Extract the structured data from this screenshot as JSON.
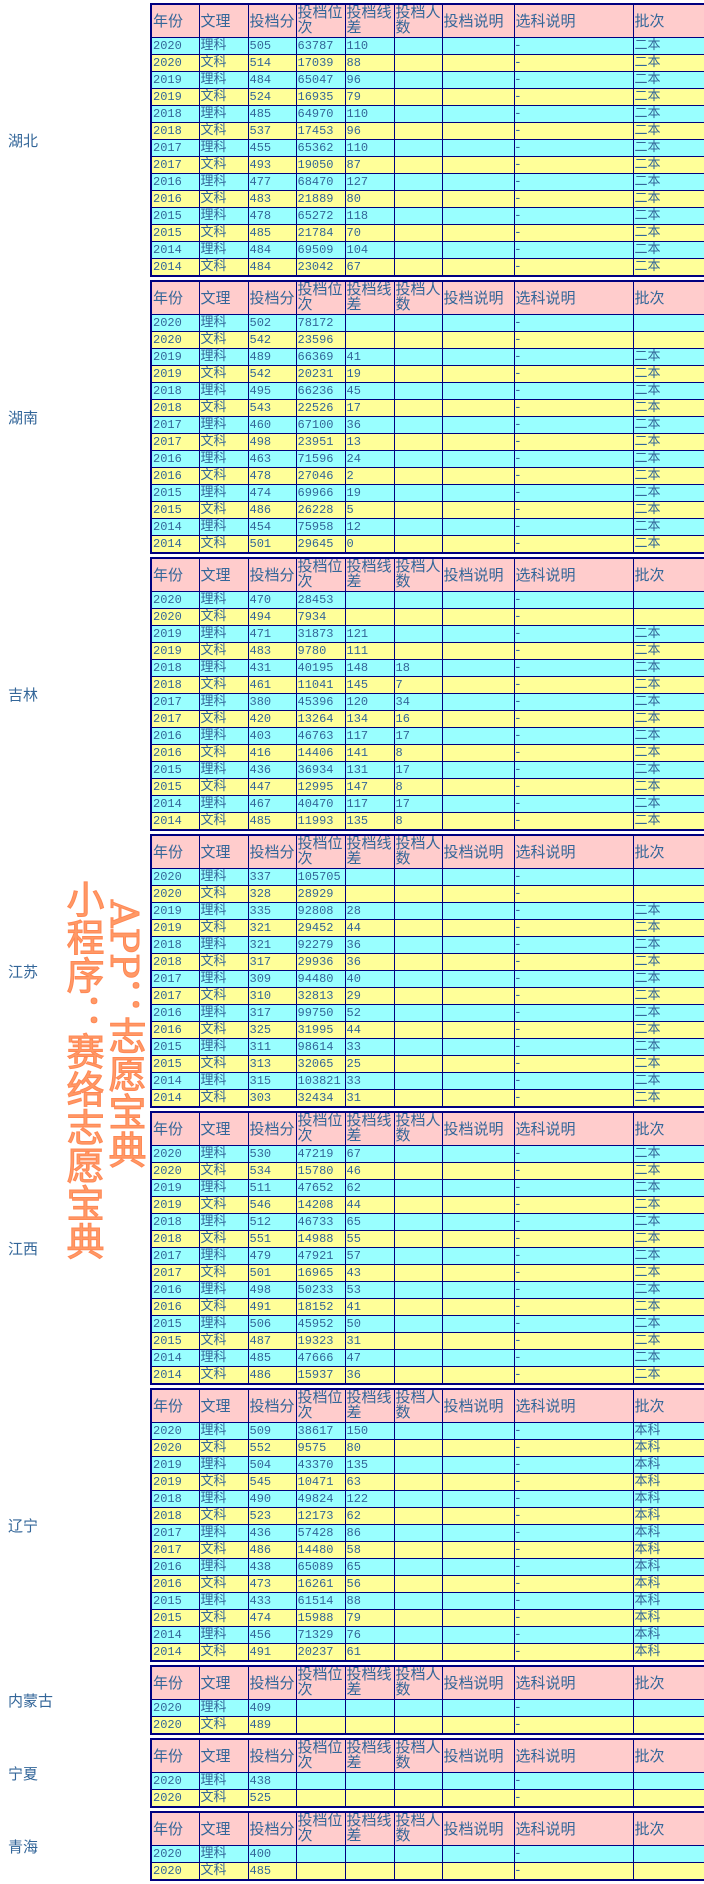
{
  "headers": [
    "年份",
    "文理",
    "投档分",
    "投档位次",
    "投档线差",
    "投档人数",
    "投档说明",
    "选科说明",
    "批次"
  ],
  "watermark": {
    "line1": "小程序：赛络志愿宝典",
    "line2": "APP：志愿宝典"
  },
  "colors": {
    "header_bg": "#ffcccc",
    "row_odd_bg": "#99ffff",
    "row_even_bg": "#ffff99",
    "border": "#000080",
    "text": "#336699",
    "watermark": "#ff9966"
  },
  "provinces": [
    {
      "name": "湖北",
      "rows": [
        [
          "2020",
          "理科",
          "505",
          "63787",
          "110",
          "",
          "",
          "-",
          "二本"
        ],
        [
          "2020",
          "文科",
          "514",
          "17039",
          "88",
          "",
          "",
          "-",
          "二本"
        ],
        [
          "2019",
          "理科",
          "484",
          "65047",
          "96",
          "",
          "",
          "-",
          "二本"
        ],
        [
          "2019",
          "文科",
          "524",
          "16935",
          "79",
          "",
          "",
          "-",
          "二本"
        ],
        [
          "2018",
          "理科",
          "485",
          "64970",
          "110",
          "",
          "",
          "-",
          "二本"
        ],
        [
          "2018",
          "文科",
          "537",
          "17453",
          "96",
          "",
          "",
          "-",
          "二本"
        ],
        [
          "2017",
          "理科",
          "455",
          "65362",
          "110",
          "",
          "",
          "-",
          "二本"
        ],
        [
          "2017",
          "文科",
          "493",
          "19050",
          "87",
          "",
          "",
          "-",
          "二本"
        ],
        [
          "2016",
          "理科",
          "477",
          "68470",
          "127",
          "",
          "",
          "-",
          "二本"
        ],
        [
          "2016",
          "文科",
          "483",
          "21889",
          "80",
          "",
          "",
          "-",
          "二本"
        ],
        [
          "2015",
          "理科",
          "478",
          "65272",
          "118",
          "",
          "",
          "-",
          "二本"
        ],
        [
          "2015",
          "文科",
          "485",
          "21784",
          "70",
          "",
          "",
          "-",
          "二本"
        ],
        [
          "2014",
          "理科",
          "484",
          "69509",
          "104",
          "",
          "",
          "-",
          "二本"
        ],
        [
          "2014",
          "文科",
          "484",
          "23042",
          "67",
          "",
          "",
          "-",
          "二本"
        ]
      ]
    },
    {
      "name": "湖南",
      "rows": [
        [
          "2020",
          "理科",
          "502",
          "78172",
          "",
          "",
          "",
          "-",
          ""
        ],
        [
          "2020",
          "文科",
          "542",
          "23596",
          "",
          "",
          "",
          "-",
          ""
        ],
        [
          "2019",
          "理科",
          "489",
          "66369",
          "41",
          "",
          "",
          "-",
          "二本"
        ],
        [
          "2019",
          "文科",
          "542",
          "20231",
          "19",
          "",
          "",
          "-",
          "二本"
        ],
        [
          "2018",
          "理科",
          "495",
          "66236",
          "45",
          "",
          "",
          "-",
          "二本"
        ],
        [
          "2018",
          "文科",
          "543",
          "22526",
          "17",
          "",
          "",
          "-",
          "二本"
        ],
        [
          "2017",
          "理科",
          "460",
          "67100",
          "36",
          "",
          "",
          "-",
          "二本"
        ],
        [
          "2017",
          "文科",
          "498",
          "23951",
          "13",
          "",
          "",
          "-",
          "二本"
        ],
        [
          "2016",
          "理科",
          "463",
          "71596",
          "24",
          "",
          "",
          "-",
          "二本"
        ],
        [
          "2016",
          "文科",
          "478",
          "27046",
          "2",
          "",
          "",
          "-",
          "二本"
        ],
        [
          "2015",
          "理科",
          "474",
          "69966",
          "19",
          "",
          "",
          "-",
          "二本"
        ],
        [
          "2015",
          "文科",
          "486",
          "26228",
          "5",
          "",
          "",
          "-",
          "二本"
        ],
        [
          "2014",
          "理科",
          "454",
          "75958",
          "12",
          "",
          "",
          "-",
          "二本"
        ],
        [
          "2014",
          "文科",
          "501",
          "29645",
          "0",
          "",
          "",
          "-",
          "二本"
        ]
      ]
    },
    {
      "name": "吉林",
      "rows": [
        [
          "2020",
          "理科",
          "470",
          "28453",
          "",
          "",
          "",
          "-",
          ""
        ],
        [
          "2020",
          "文科",
          "494",
          "7934",
          "",
          "",
          "",
          "-",
          ""
        ],
        [
          "2019",
          "理科",
          "471",
          "31873",
          "121",
          "",
          "",
          "-",
          "二本"
        ],
        [
          "2019",
          "文科",
          "483",
          "9780",
          "111",
          "",
          "",
          "-",
          "二本"
        ],
        [
          "2018",
          "理科",
          "431",
          "40195",
          "148",
          "18",
          "",
          "-",
          "二本"
        ],
        [
          "2018",
          "文科",
          "461",
          "11041",
          "145",
          "7",
          "",
          "-",
          "二本"
        ],
        [
          "2017",
          "理科",
          "380",
          "45396",
          "120",
          "34",
          "",
          "-",
          "二本"
        ],
        [
          "2017",
          "文科",
          "420",
          "13264",
          "134",
          "16",
          "",
          "-",
          "二本"
        ],
        [
          "2016",
          "理科",
          "403",
          "46763",
          "117",
          "17",
          "",
          "-",
          "二本"
        ],
        [
          "2016",
          "文科",
          "416",
          "14406",
          "141",
          "8",
          "",
          "-",
          "二本"
        ],
        [
          "2015",
          "理科",
          "436",
          "36934",
          "131",
          "17",
          "",
          "-",
          "二本"
        ],
        [
          "2015",
          "文科",
          "447",
          "12995",
          "147",
          "8",
          "",
          "-",
          "二本"
        ],
        [
          "2014",
          "理科",
          "467",
          "40470",
          "117",
          "17",
          "",
          "-",
          "二本"
        ],
        [
          "2014",
          "文科",
          "485",
          "11993",
          "135",
          "8",
          "",
          "-",
          "二本"
        ]
      ]
    },
    {
      "name": "江苏",
      "rows": [
        [
          "2020",
          "理科",
          "337",
          "105705",
          "",
          "",
          "",
          "-",
          ""
        ],
        [
          "2020",
          "文科",
          "328",
          "28929",
          "",
          "",
          "",
          "-",
          ""
        ],
        [
          "2019",
          "理科",
          "335",
          "92808",
          "28",
          "",
          "",
          "-",
          "二本"
        ],
        [
          "2019",
          "文科",
          "321",
          "29452",
          "44",
          "",
          "",
          "-",
          "二本"
        ],
        [
          "2018",
          "理科",
          "321",
          "92279",
          "36",
          "",
          "",
          "-",
          "二本"
        ],
        [
          "2018",
          "文科",
          "317",
          "29936",
          "36",
          "",
          "",
          "-",
          "二本"
        ],
        [
          "2017",
          "理科",
          "309",
          "94480",
          "40",
          "",
          "",
          "-",
          "二本"
        ],
        [
          "2017",
          "文科",
          "310",
          "32813",
          "29",
          "",
          "",
          "-",
          "二本"
        ],
        [
          "2016",
          "理科",
          "317",
          "99750",
          "52",
          "",
          "",
          "-",
          "二本"
        ],
        [
          "2016",
          "文科",
          "325",
          "31995",
          "44",
          "",
          "",
          "-",
          "二本"
        ],
        [
          "2015",
          "理科",
          "311",
          "98614",
          "33",
          "",
          "",
          "-",
          "二本"
        ],
        [
          "2015",
          "文科",
          "313",
          "32065",
          "25",
          "",
          "",
          "-",
          "二本"
        ],
        [
          "2014",
          "理科",
          "315",
          "103821",
          "33",
          "",
          "",
          "-",
          "二本"
        ],
        [
          "2014",
          "文科",
          "303",
          "32434",
          "31",
          "",
          "",
          "-",
          "二本"
        ]
      ]
    },
    {
      "name": "江西",
      "rows": [
        [
          "2020",
          "理科",
          "530",
          "47219",
          "67",
          "",
          "",
          "-",
          "二本"
        ],
        [
          "2020",
          "文科",
          "534",
          "15780",
          "46",
          "",
          "",
          "-",
          "二本"
        ],
        [
          "2019",
          "理科",
          "511",
          "47652",
          "62",
          "",
          "",
          "-",
          "二本"
        ],
        [
          "2019",
          "文科",
          "546",
          "14208",
          "44",
          "",
          "",
          "-",
          "二本"
        ],
        [
          "2018",
          "理科",
          "512",
          "46733",
          "65",
          "",
          "",
          "-",
          "二本"
        ],
        [
          "2018",
          "文科",
          "551",
          "14988",
          "55",
          "",
          "",
          "-",
          "二本"
        ],
        [
          "2017",
          "理科",
          "479",
          "47921",
          "57",
          "",
          "",
          "-",
          "二本"
        ],
        [
          "2017",
          "文科",
          "501",
          "16965",
          "43",
          "",
          "",
          "-",
          "二本"
        ],
        [
          "2016",
          "理科",
          "498",
          "50233",
          "53",
          "",
          "",
          "-",
          "二本"
        ],
        [
          "2016",
          "文科",
          "491",
          "18152",
          "41",
          "",
          "",
          "-",
          "二本"
        ],
        [
          "2015",
          "理科",
          "506",
          "45952",
          "50",
          "",
          "",
          "-",
          "二本"
        ],
        [
          "2015",
          "文科",
          "487",
          "19323",
          "31",
          "",
          "",
          "-",
          "二本"
        ],
        [
          "2014",
          "理科",
          "485",
          "47666",
          "47",
          "",
          "",
          "-",
          "二本"
        ],
        [
          "2014",
          "文科",
          "486",
          "15937",
          "36",
          "",
          "",
          "-",
          "二本"
        ]
      ]
    },
    {
      "name": "辽宁",
      "rows": [
        [
          "2020",
          "理科",
          "509",
          "38617",
          "150",
          "",
          "",
          "-",
          "本科"
        ],
        [
          "2020",
          "文科",
          "552",
          "9575",
          "80",
          "",
          "",
          "-",
          "本科"
        ],
        [
          "2019",
          "理科",
          "504",
          "43370",
          "135",
          "",
          "",
          "-",
          "本科"
        ],
        [
          "2019",
          "文科",
          "545",
          "10471",
          "63",
          "",
          "",
          "-",
          "本科"
        ],
        [
          "2018",
          "理科",
          "490",
          "49824",
          "122",
          "",
          "",
          "-",
          "本科"
        ],
        [
          "2018",
          "文科",
          "523",
          "12173",
          "62",
          "",
          "",
          "-",
          "本科"
        ],
        [
          "2017",
          "理科",
          "436",
          "57428",
          "86",
          "",
          "",
          "-",
          "本科"
        ],
        [
          "2017",
          "文科",
          "486",
          "14480",
          "58",
          "",
          "",
          "-",
          "本科"
        ],
        [
          "2016",
          "理科",
          "438",
          "65089",
          "65",
          "",
          "",
          "-",
          "本科"
        ],
        [
          "2016",
          "文科",
          "473",
          "16261",
          "56",
          "",
          "",
          "-",
          "本科"
        ],
        [
          "2015",
          "理科",
          "433",
          "61514",
          "88",
          "",
          "",
          "-",
          "本科"
        ],
        [
          "2015",
          "文科",
          "474",
          "15988",
          "79",
          "",
          "",
          "-",
          "本科"
        ],
        [
          "2014",
          "理科",
          "456",
          "71329",
          "76",
          "",
          "",
          "-",
          "本科"
        ],
        [
          "2014",
          "文科",
          "491",
          "20237",
          "61",
          "",
          "",
          "-",
          "本科"
        ]
      ]
    },
    {
      "name": "内蒙古",
      "rows": [
        [
          "2020",
          "理科",
          "409",
          "",
          "",
          "",
          "",
          "-",
          ""
        ],
        [
          "2020",
          "文科",
          "489",
          "",
          "",
          "",
          "",
          "-",
          ""
        ]
      ]
    },
    {
      "name": "宁夏",
      "rows": [
        [
          "2020",
          "理科",
          "438",
          "",
          "",
          "",
          "",
          "-",
          ""
        ],
        [
          "2020",
          "文科",
          "525",
          "",
          "",
          "",
          "",
          "-",
          ""
        ]
      ]
    },
    {
      "name": "青海",
      "rows": [
        [
          "2020",
          "理科",
          "400",
          "",
          "",
          "",
          "",
          "-",
          ""
        ],
        [
          "2020",
          "文科",
          "485",
          "",
          "",
          "",
          "",
          "-",
          ""
        ]
      ]
    }
  ]
}
